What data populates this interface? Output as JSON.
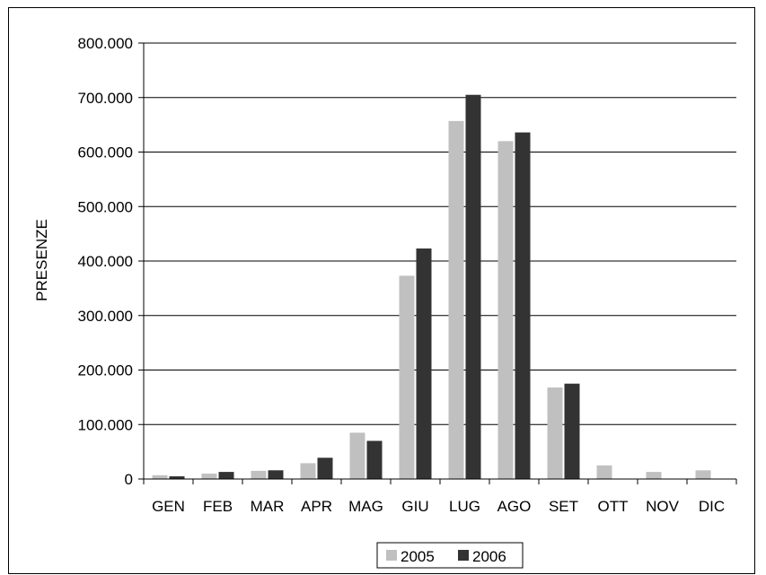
{
  "chart_data": {
    "type": "bar",
    "title": "",
    "xlabel": "",
    "ylabel": "PRESENZE",
    "ylim": [
      0,
      800000
    ],
    "yticks": [
      0,
      100000,
      200000,
      300000,
      400000,
      500000,
      600000,
      700000,
      800000
    ],
    "ytick_labels": [
      "0",
      "100.000",
      "200.000",
      "300.000",
      "400.000",
      "500.000",
      "600.000",
      "700.000",
      "800.000"
    ],
    "categories": [
      "GEN",
      "FEB",
      "MAR",
      "APR",
      "MAG",
      "GIU",
      "LUG",
      "AGO",
      "SET",
      "OTT",
      "NOV",
      "DIC"
    ],
    "series": [
      {
        "name": "2005",
        "color": "#c0c0c0",
        "values": [
          7000,
          10000,
          15000,
          29000,
          85000,
          373000,
          657000,
          620000,
          168000,
          25000,
          13000,
          16000
        ]
      },
      {
        "name": "2006",
        "color": "#333333",
        "values": [
          5000,
          13000,
          16000,
          39000,
          70000,
          423000,
          705000,
          636000,
          175000,
          0,
          0,
          0
        ]
      }
    ],
    "grid": true,
    "legend_position": "bottom"
  }
}
